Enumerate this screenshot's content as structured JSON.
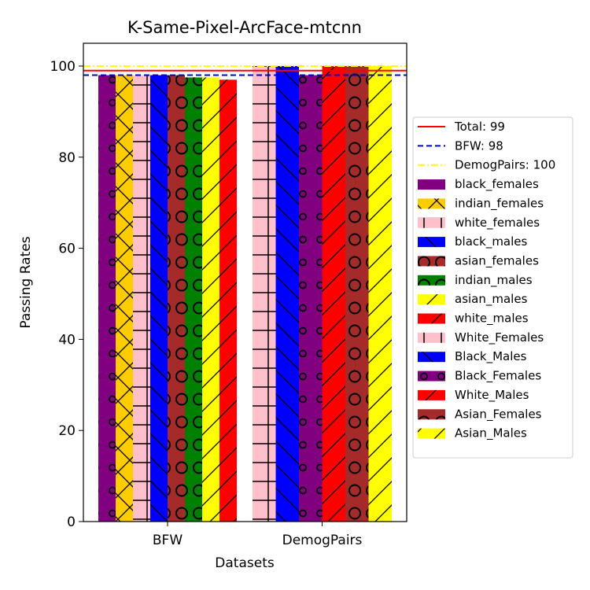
{
  "chart_data": {
    "type": "bar",
    "title": "K-Same-Pixel-ArcFace-mtcnn",
    "xlabel": "Datasets",
    "ylabel": "Passing Rates",
    "ylim": [
      0,
      105
    ],
    "yticks": [
      0,
      20,
      40,
      60,
      80,
      100
    ],
    "grid": false,
    "legend_placement": "center-right outside",
    "categories": [
      "BFW",
      "DemogPairs"
    ],
    "reference_lines": [
      {
        "label": "Total: 99",
        "value": 99,
        "color": "#ff0000",
        "style": "solid"
      },
      {
        "label": "BFW: 98",
        "value": 98,
        "color": "#0000cc",
        "style": "dashed"
      },
      {
        "label": "DemogPairs: 100",
        "value": 100,
        "color": "#ffff00",
        "style": "dashdot"
      }
    ],
    "series": [
      {
        "name": "black_females",
        "color": "#800080",
        "hatch": "circles",
        "values": [
          98,
          null
        ]
      },
      {
        "name": "indian_females",
        "color": "#ffcc00",
        "hatch": "crosshatch",
        "values": [
          98,
          null
        ]
      },
      {
        "name": "white_females",
        "color": "#ffc0cb",
        "hatch": "plus",
        "values": [
          98,
          null
        ]
      },
      {
        "name": "black_males",
        "color": "#0000ff",
        "hatch": "backslash",
        "values": [
          98,
          null
        ]
      },
      {
        "name": "asian_females",
        "color": "#a52a2a",
        "hatch": "circles-large",
        "values": [
          98,
          null
        ]
      },
      {
        "name": "indian_males",
        "color": "#008000",
        "hatch": "circles-large",
        "values": [
          97.5,
          null
        ]
      },
      {
        "name": "asian_males",
        "color": "#ffff00",
        "hatch": "slash",
        "values": [
          97.5,
          null
        ]
      },
      {
        "name": "white_males",
        "color": "#ff0000",
        "hatch": "slash",
        "values": [
          97,
          null
        ]
      },
      {
        "name": "White_Females",
        "color": "#ffc0cb",
        "hatch": "plus",
        "values": [
          null,
          100
        ]
      },
      {
        "name": "Black_Males",
        "color": "#0000ff",
        "hatch": "backslash",
        "values": [
          null,
          100
        ]
      },
      {
        "name": "Black_Females",
        "color": "#800080",
        "hatch": "circles",
        "values": [
          null,
          98
        ]
      },
      {
        "name": "White_Males",
        "color": "#ff0000",
        "hatch": "slash",
        "values": [
          null,
          100
        ]
      },
      {
        "name": "Asian_Females",
        "color": "#a52a2a",
        "hatch": "circles-large",
        "values": [
          null,
          100
        ]
      },
      {
        "name": "Asian_Males",
        "color": "#ffff00",
        "hatch": "slash",
        "values": [
          null,
          100
        ]
      }
    ]
  }
}
